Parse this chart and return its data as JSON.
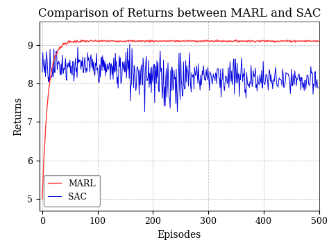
{
  "title": "Comparison of Returns between MARL and SAC",
  "xlabel": "Episodes",
  "ylabel": "Returns",
  "xlim": [
    -5,
    500
  ],
  "ylim": [
    4.7,
    9.6
  ],
  "yticks": [
    5,
    6,
    7,
    8,
    9
  ],
  "xticks": [
    0,
    100,
    200,
    300,
    400,
    500
  ],
  "marl_color": "#ff3333",
  "sac_color": "#0000dd",
  "marl_label": "MARL",
  "sac_label": "SAC",
  "n_episodes": 500,
  "marl_start": 4.98,
  "marl_converge": 9.1,
  "marl_k": 0.1,
  "sac_mean_early": 8.5,
  "sac_mean_late": 8.0,
  "sac_noise_std": 0.22,
  "background_color": "#ffffff",
  "grid_color": "#bbbbbb",
  "grid_linestyle": "--",
  "title_fontsize": 12,
  "label_fontsize": 10,
  "tick_fontsize": 9,
  "legend_fontsize": 9,
  "figwidth": 4.74,
  "figheight": 3.48,
  "dpi": 100
}
